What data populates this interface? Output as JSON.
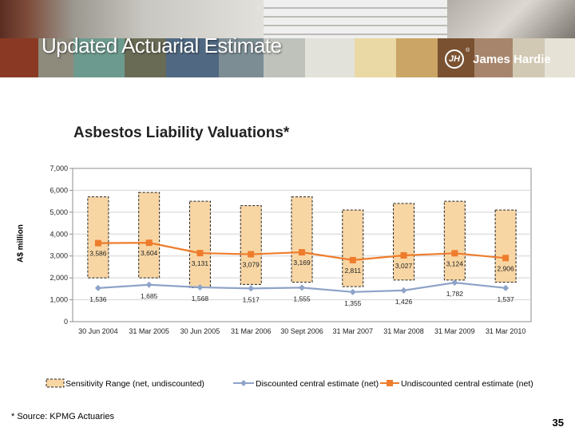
{
  "header": {
    "title": "Updated Actuarial Estimate",
    "brand": "James Hardie",
    "brand_mark": "JH",
    "brand_reg": "®",
    "swatch_colors": [
      "#8a3a24",
      "#8e8b7d",
      "#6d9a8e",
      "#6a6b55",
      "#506882",
      "#7c8d94",
      "#bfc2bb",
      "#e3e2da",
      "#ead9a4",
      "#caa565",
      "#7a5232",
      "#a7856c",
      "#d2c9b4",
      "#e6e2d6"
    ]
  },
  "footnote": "* Source: KPMG Actuaries",
  "page_number": "35",
  "chart_data": {
    "type": "line",
    "title": "Asbestos Liability Valuations*",
    "ylabel": "A$ million",
    "xlabel": "",
    "ylim": [
      0,
      7000
    ],
    "yticks": [
      0,
      1000,
      2000,
      3000,
      4000,
      5000,
      6000,
      7000
    ],
    "ytick_labels": [
      "0",
      "1,000",
      "2,000",
      "3,000",
      "4,000",
      "5,000",
      "6,000",
      "7,000"
    ],
    "categories": [
      "30 Jun 2004",
      "31 Mar 2005",
      "30 Jun 2005",
      "31 Mar 2006",
      "30 Sept 2006",
      "31 Mar 2007",
      "31 Mar 2008",
      "31 Mar 2009",
      "31 Mar 2010"
    ],
    "grid": true,
    "legend_position": "bottom",
    "range": {
      "name": "Sensitivity Range (net, undiscounted)",
      "color": "#f8d6a4",
      "low": [
        2000,
        2000,
        1550,
        1700,
        1800,
        1600,
        1900,
        1900,
        1800
      ],
      "high": [
        5700,
        5900,
        5500,
        5300,
        5700,
        5100,
        5400,
        5500,
        5100
      ]
    },
    "series": [
      {
        "name": "Discounted central estimate (net)",
        "color": "#8ea3c8",
        "marker": "diamond",
        "values": [
          1536,
          1685,
          1568,
          1517,
          1555,
          1355,
          1426,
          1782,
          1537
        ],
        "labels": [
          "1,536",
          "1,685",
          "1,568",
          "1,517",
          "1,555",
          "1,355",
          "1,426",
          "1,782",
          "1,537"
        ]
      },
      {
        "name": "Undiscounted central estimate (net)",
        "color": "#ee7c2c",
        "marker": "square",
        "values": [
          3586,
          3604,
          3131,
          3079,
          3169,
          2811,
          3027,
          3124,
          2906
        ],
        "labels": [
          "3,586",
          "3,604",
          "3,131",
          "3,079",
          "3,169",
          "2,811",
          "3,027",
          "3,124",
          "2,906"
        ]
      }
    ]
  }
}
